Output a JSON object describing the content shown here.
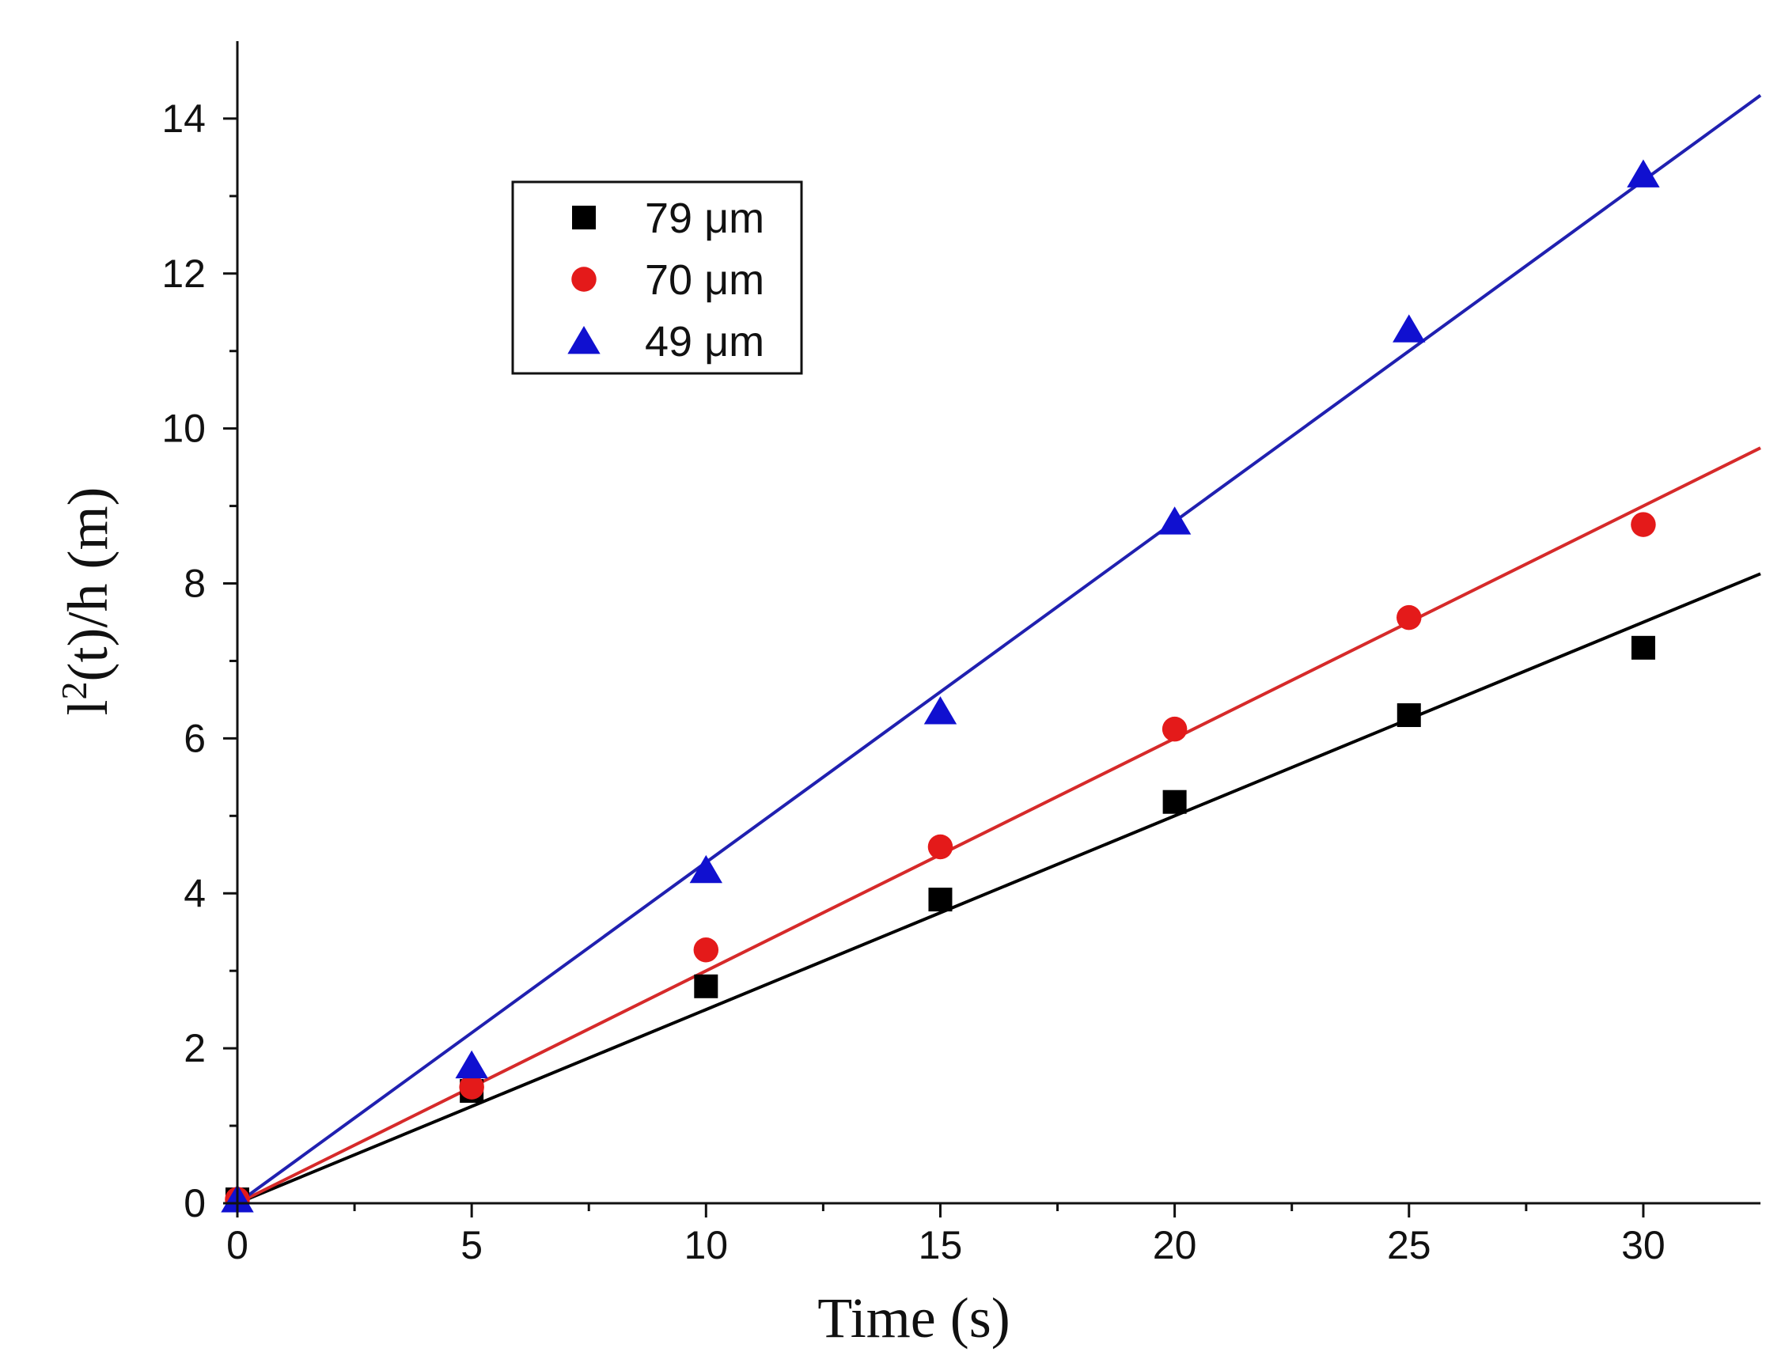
{
  "chart_data": {
    "type": "scatter",
    "title": "",
    "xlabel": "Time (s)",
    "ylabel_base": "l",
    "ylabel_sup": "2",
    "ylabel_rest": "(t)/h (m)",
    "xlim": [
      0,
      32.5
    ],
    "ylim": [
      0,
      15
    ],
    "xticks": [
      0,
      5,
      10,
      15,
      20,
      25,
      30
    ],
    "yticks": [
      0,
      2,
      4,
      6,
      8,
      10,
      12,
      14
    ],
    "grid": false,
    "legend_position": "top-left",
    "series": [
      {
        "name": "79 μm",
        "marker": "square",
        "color": "#000000",
        "x": [
          0,
          5,
          10,
          15,
          20,
          25,
          30
        ],
        "y": [
          0.05,
          1.45,
          2.8,
          3.92,
          5.18,
          6.3,
          7.17
        ],
        "fit_slope": 0.25
      },
      {
        "name": "70 μm",
        "marker": "circle",
        "color": "#e41a1a",
        "x": [
          0,
          5,
          10,
          15,
          20,
          25,
          30
        ],
        "y": [
          0.05,
          1.5,
          3.27,
          4.6,
          6.12,
          7.56,
          8.76
        ],
        "fit_slope": 0.3
      },
      {
        "name": "49 μm",
        "marker": "triangle",
        "color": "#1010d0",
        "x": [
          0,
          5,
          10,
          15,
          20,
          25,
          30
        ],
        "y": [
          0.05,
          1.78,
          4.3,
          6.35,
          8.8,
          11.28,
          13.28
        ],
        "fit_slope": 0.44
      }
    ],
    "fit_line_colors": [
      "#000000",
      "#d62a2a",
      "#2020b0"
    ]
  }
}
